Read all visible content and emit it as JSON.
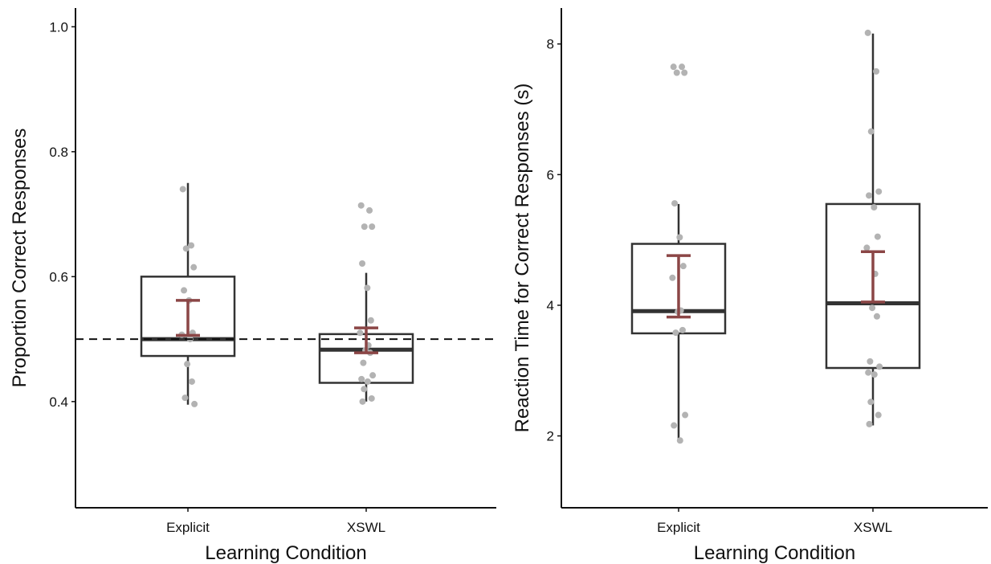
{
  "chart_data": [
    {
      "type": "box",
      "title": "",
      "xlabel": "Learning Condition",
      "ylabel": "Proportion Correct Responses",
      "categories": [
        "Explicit",
        "XSWL"
      ],
      "ylim": [
        0.23,
        1.03
      ],
      "yticks": [
        "0.4",
        "0.6",
        "0.8",
        "1.0"
      ],
      "reference_line": {
        "y": 0.5,
        "style": "dashed"
      },
      "colors": {
        "box": "#333333",
        "points": "#b3b3b3",
        "mean_ci": "#8b4646"
      },
      "boxes": [
        {
          "category": "Explicit",
          "min": 0.395,
          "q1": 0.473,
          "median": 0.5,
          "q3": 0.6,
          "max": 0.75
        },
        {
          "category": "XSWL",
          "min": 0.4,
          "q1": 0.43,
          "median": 0.483,
          "q3": 0.508,
          "max": 0.606
        }
      ],
      "mean_ci": [
        {
          "category": "Explicit",
          "lower": 0.506,
          "upper": 0.562
        },
        {
          "category": "XSWL",
          "lower": 0.478,
          "upper": 0.518
        }
      ],
      "points": [
        {
          "category": "Explicit",
          "values": [
            0.74,
            0.65,
            0.645,
            0.615,
            0.578,
            0.562,
            0.51,
            0.507,
            0.5,
            0.46,
            0.432,
            0.406,
            0.396
          ]
        },
        {
          "category": "XSWL",
          "values": [
            0.714,
            0.706,
            0.68,
            0.68,
            0.621,
            0.582,
            0.53,
            0.51,
            0.49,
            0.482,
            0.478,
            0.462,
            0.442,
            0.436,
            0.432,
            0.42,
            0.405,
            0.4
          ]
        }
      ]
    },
    {
      "type": "box",
      "title": "",
      "xlabel": "Learning Condition",
      "ylabel": "Reaction Time for Correct Responses (s)",
      "categories": [
        "Explicit",
        "XSWL"
      ],
      "ylim": [
        0.9,
        8.55
      ],
      "yticks": [
        "2",
        "4",
        "6",
        "8"
      ],
      "colors": {
        "box": "#333333",
        "points": "#b3b3b3",
        "mean_ci": "#8b4646"
      },
      "boxes": [
        {
          "category": "Explicit",
          "min": 1.93,
          "q1": 3.57,
          "median": 3.91,
          "q3": 4.94,
          "max": 5.55
        },
        {
          "category": "XSWL",
          "min": 2.16,
          "q1": 3.04,
          "median": 4.03,
          "q3": 5.55,
          "max": 8.16
        }
      ],
      "mean_ci": [
        {
          "category": "Explicit",
          "lower": 3.82,
          "upper": 4.76
        },
        {
          "category": "XSWL",
          "lower": 4.05,
          "upper": 4.82
        }
      ],
      "points": [
        {
          "category": "Explicit",
          "values": [
            7.65,
            7.65,
            7.56,
            7.56,
            5.56,
            5.04,
            4.6,
            4.42,
            3.92,
            3.9,
            3.62,
            3.58,
            2.32,
            2.16,
            1.93
          ]
        },
        {
          "category": "XSWL",
          "values": [
            8.17,
            7.58,
            6.66,
            5.74,
            5.68,
            5.5,
            5.05,
            4.88,
            4.48,
            3.96,
            3.83,
            3.14,
            3.06,
            2.97,
            2.94,
            2.52,
            2.32,
            2.18
          ]
        }
      ]
    }
  ]
}
